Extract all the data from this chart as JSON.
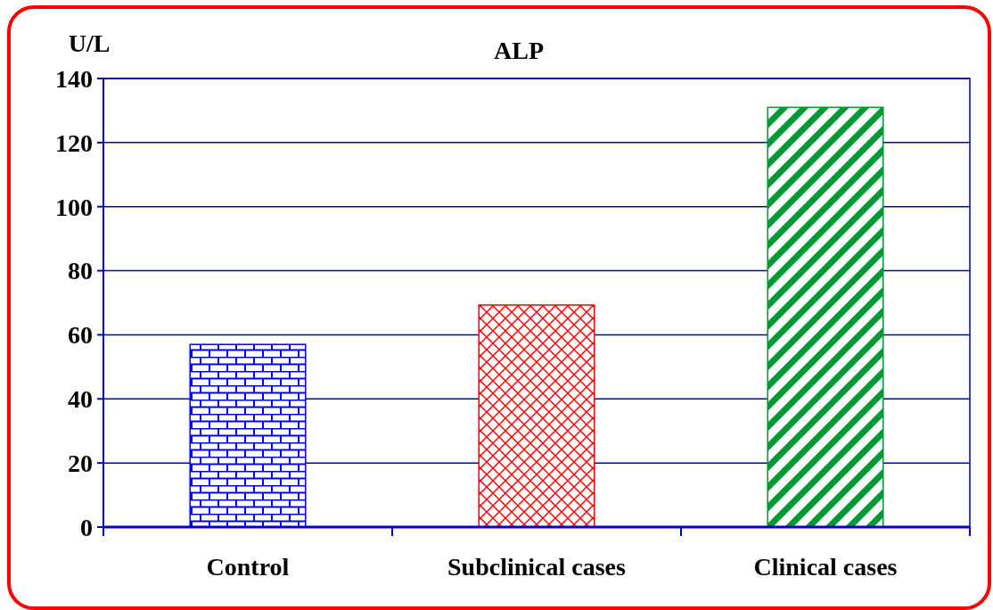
{
  "chart_data": {
    "type": "bar",
    "title": "ALP",
    "ylabel": "U/L",
    "categories": [
      "Control",
      "Subclinical cases",
      "Clinical cases"
    ],
    "values": [
      57,
      69.3,
      131
    ],
    "colors": [
      "#0000ff",
      "#ff0000",
      "#009933"
    ],
    "ylim": [
      0,
      140
    ],
    "yticks": [
      0,
      20,
      40,
      60,
      80,
      100,
      120,
      140
    ],
    "grid": "y"
  }
}
